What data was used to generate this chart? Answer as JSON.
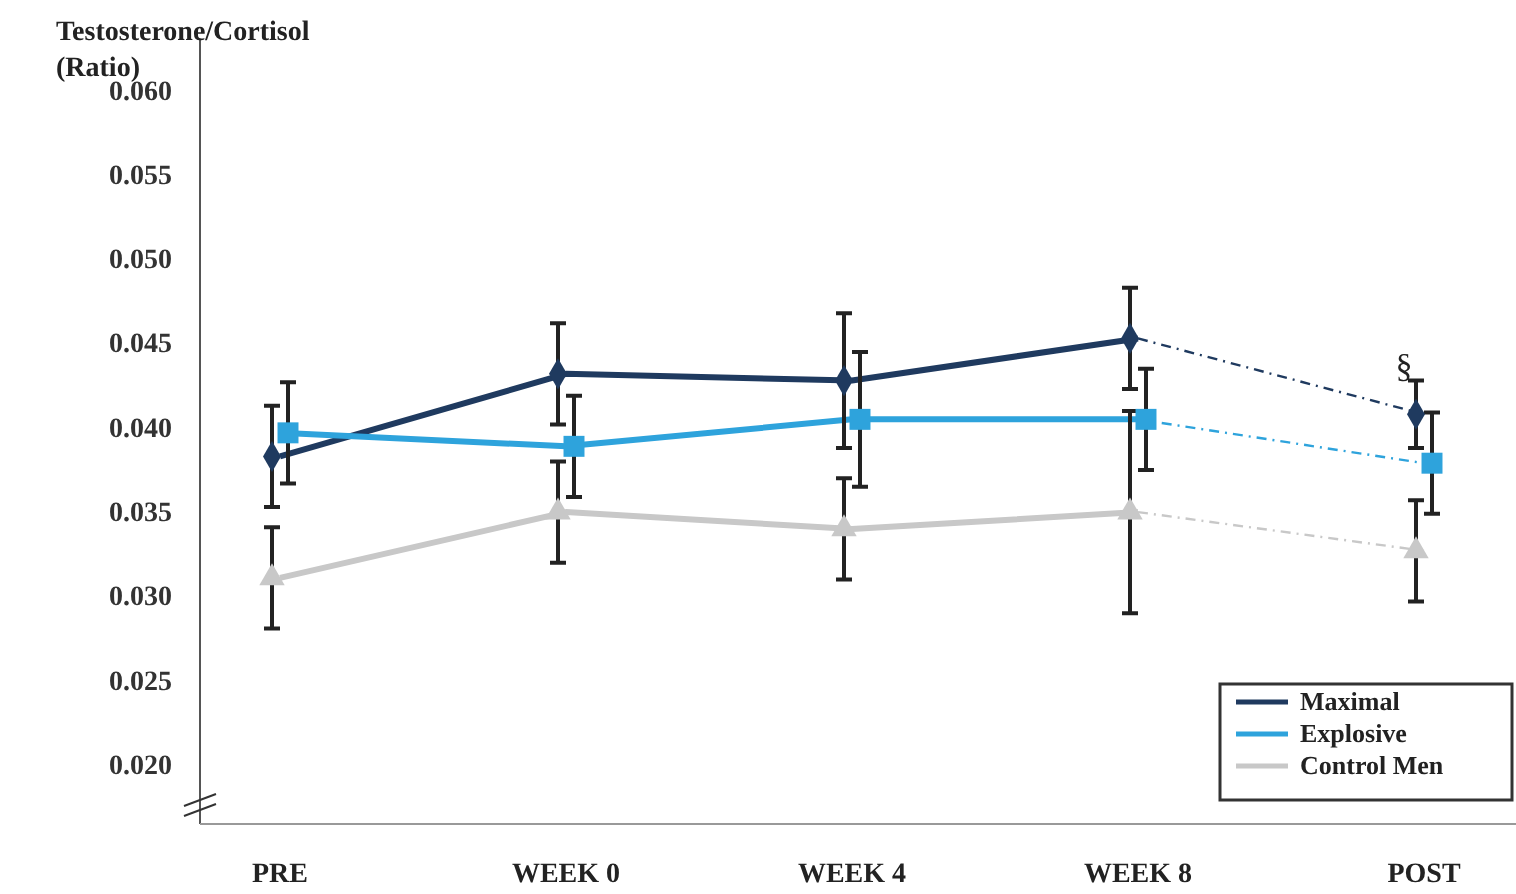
{
  "chart_data": {
    "type": "line",
    "ylabel": "Testosterone/Cortisol\n(Ratio)",
    "categories": [
      "PRE",
      "WEEK 0",
      "WEEK 4",
      "WEEK 8",
      "POST"
    ],
    "ylim": [
      0.0165,
      0.063
    ],
    "yticks": [
      {
        "value": 0.02,
        "label": "0.020"
      },
      {
        "value": 0.025,
        "label": "0.025"
      },
      {
        "value": 0.03,
        "label": "0.030"
      },
      {
        "value": 0.035,
        "label": "0.035"
      },
      {
        "value": 0.04,
        "label": "0.040"
      },
      {
        "value": 0.045,
        "label": "0.045"
      },
      {
        "value": 0.05,
        "label": "0.050"
      },
      {
        "value": 0.055,
        "label": "0.055"
      },
      {
        "value": 0.06,
        "label": "0.060"
      }
    ],
    "legend": "bottom right",
    "grid": false,
    "series": [
      {
        "name": "Maximal",
        "color": "#1f3a5f",
        "marker": "diamond",
        "line_style": "solid",
        "values": [
          0.0383,
          0.0432,
          0.0428,
          0.0453,
          null
        ],
        "errors": [
          0.003,
          0.003,
          0.004,
          0.003,
          null
        ]
      },
      {
        "name": "Explosive",
        "color": "#2ea3dc",
        "marker": "square",
        "line_style": "solid",
        "values": [
          0.0397,
          0.0389,
          0.0405,
          0.0405,
          null
        ],
        "errors": [
          0.003,
          0.003,
          0.004,
          0.003,
          null
        ]
      },
      {
        "name": "Control Men",
        "color": "#c8c8c8",
        "marker": "triangle",
        "line_style": "solid",
        "values": [
          0.0311,
          0.035,
          0.034,
          0.035,
          null
        ],
        "errors": [
          0.003,
          0.003,
          0.003,
          0.006,
          null
        ]
      },
      {
        "color": "#1f3a5f",
        "marker": "diamond",
        "line_style": "dashed",
        "values": [
          null,
          null,
          null,
          0.0453,
          0.0408
        ],
        "errors": [
          null,
          null,
          null,
          null,
          0.002
        ]
      },
      {
        "color": "#2ea3dc",
        "marker": "square",
        "line_style": "dashed",
        "values": [
          null,
          null,
          null,
          0.0405,
          0.0379
        ],
        "errors": [
          null,
          null,
          null,
          null,
          0.003
        ]
      },
      {
        "color": "#c8c8c8",
        "marker": "triangle",
        "line_style": "dashed",
        "values": [
          null,
          null,
          null,
          0.035,
          0.0327
        ],
        "errors": [
          null,
          null,
          null,
          null,
          0.003
        ]
      }
    ],
    "annotations": [
      {
        "text": "§",
        "x": "POST",
        "y": 0.0428
      }
    ]
  }
}
